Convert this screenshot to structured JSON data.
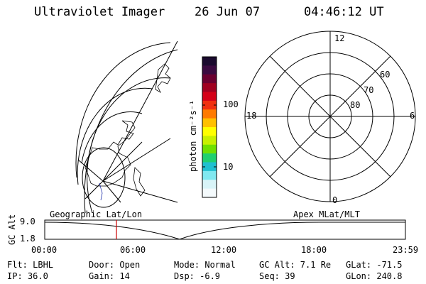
{
  "header": {
    "title": "Ultraviolet Imager",
    "date": "26 Jun 07",
    "time": "04:46:12 UT"
  },
  "colorbar": {
    "unit_label": "photon cm⁻²s⁻¹",
    "ticks": [
      "100",
      "10"
    ],
    "colors": [
      "#1a0a2e",
      "#3a0a40",
      "#6a0030",
      "#a00020",
      "#d40018",
      "#f03010",
      "#ff7a00",
      "#ffc000",
      "#ffff00",
      "#c8f000",
      "#70e000",
      "#20d070",
      "#20c0d0",
      "#80e8f0",
      "#d8f4f8",
      "#f4fafc"
    ]
  },
  "polar": {
    "mlt_labels": {
      "top": "12",
      "left": "18",
      "right": "6",
      "bottom": "0"
    },
    "lat_labels": [
      "60",
      "70",
      "80"
    ]
  },
  "timeline": {
    "left_label": "Geographic Lat/Lon",
    "right_label": "Apex MLat/MLT",
    "axis_title": "GC Alt",
    "ymax": "9.0",
    "ymin": "1.8",
    "xticks": [
      "00:00",
      "06:00",
      "12:00",
      "18:00",
      "23:59"
    ],
    "current_time": "04:46:12",
    "marker_color": "#cc0000"
  },
  "status": {
    "flt": "Flt: LBHL",
    "ip": "IP: 36.0",
    "door": "Door: Open",
    "gain": "Gain: 14",
    "mode": "Mode: Normal",
    "dsp": "Dsp:    -6.9",
    "gc_alt": "GC Alt: 7.1 Re",
    "seq": "Seq: 39",
    "glat": "GLat: -71.5",
    "glon": "GLon: 240.8"
  }
}
